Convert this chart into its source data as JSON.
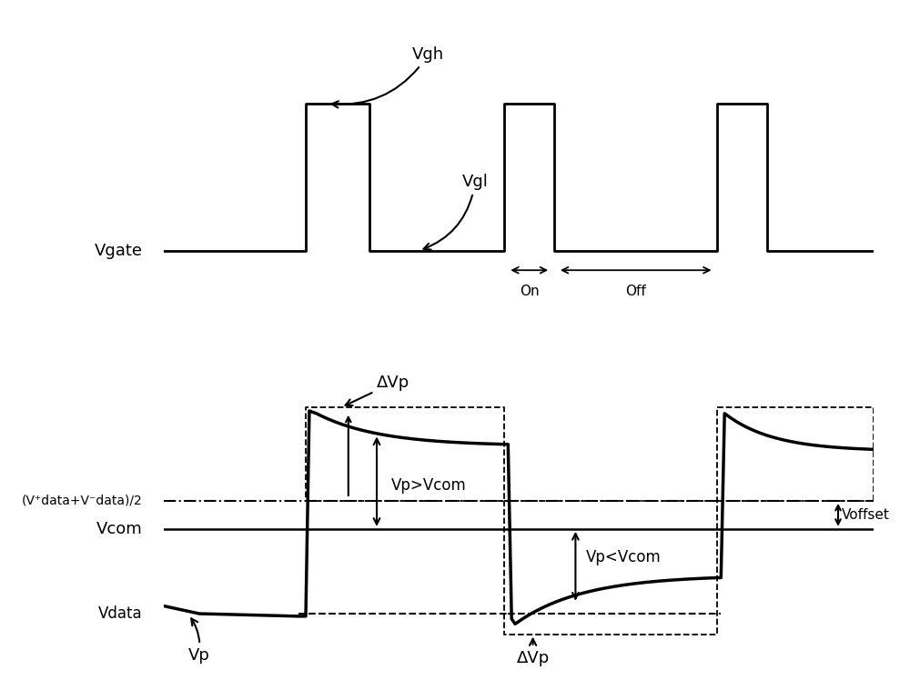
{
  "fig_width": 10.0,
  "fig_height": 7.7,
  "bg_color": "#ffffff",
  "line_color": "#000000",
  "vgh_label": "Vgh",
  "vgl_label": "Vgl",
  "vgate_label": "Vgate",
  "on_label": "On",
  "off_label": "Off",
  "delta_vp_label": "ΔVp",
  "vcom_label": "Vcom",
  "vdata_label": "Vdata",
  "vp_label": "Vp",
  "voffset_label": "Voffset",
  "vp_gt_vcom_label": "Vp>Vcom",
  "vp_lt_vcom_label": "Vp<Vcom",
  "vdata_mid_label": "(V⁺data+V⁻data)/2"
}
